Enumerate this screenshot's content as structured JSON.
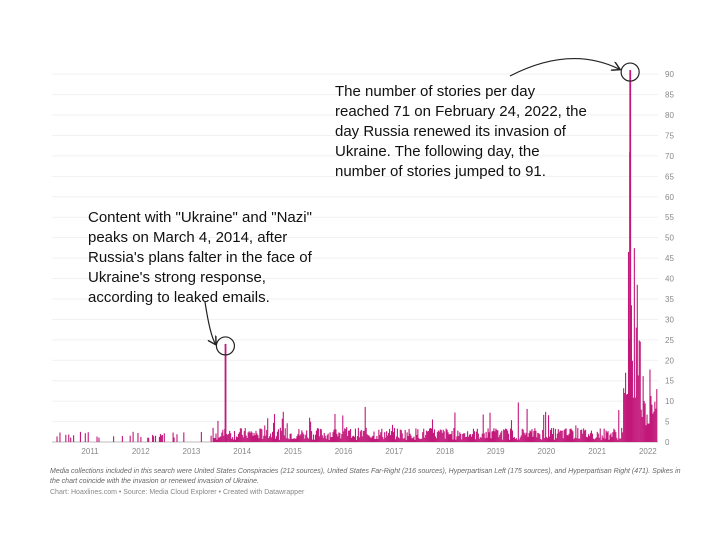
{
  "chart_data": {
    "type": "bar",
    "title": "",
    "xlabel": "",
    "ylabel": "",
    "color": "#c2187a",
    "xlim": [
      2010.75,
      2022.7
    ],
    "ylim": [
      0,
      92
    ],
    "y_ticks": [
      0,
      5,
      10,
      15,
      20,
      25,
      30,
      35,
      40,
      45,
      50,
      55,
      60,
      65,
      70,
      75,
      80,
      85,
      90
    ],
    "x_ticks": [
      {
        "year": 2011,
        "label": "2011"
      },
      {
        "year": 2012,
        "label": "2012"
      },
      {
        "year": 2013,
        "label": "2013"
      },
      {
        "year": 2014,
        "label": "2014"
      },
      {
        "year": 2015,
        "label": "2015"
      },
      {
        "year": 2016,
        "label": "2016"
      },
      {
        "year": 2017,
        "label": "2017"
      },
      {
        "year": 2018,
        "label": "2018"
      },
      {
        "year": 2019,
        "label": "2019"
      },
      {
        "year": 2020,
        "label": "2020"
      },
      {
        "year": 2021,
        "label": "2021"
      },
      {
        "year": 2022,
        "label": "2022"
      }
    ],
    "daily_stories_baseline": [
      {
        "period": "2010-10 to 2013-12",
        "typical": 0.3
      },
      {
        "period": "2014-01 to 2021-12",
        "typical": 2.5
      },
      {
        "period": "2022-01 to 2022-09",
        "typical": 12
      }
    ],
    "highlights": [
      {
        "date": "2014-03-04",
        "value": 24
      },
      {
        "date": "2022-02-24",
        "value": 71
      },
      {
        "date": "2022-02-25",
        "value": 91
      }
    ]
  },
  "annotations": {
    "peak_2022": "The number of stories per day\nreached 71 on February 24, 2022, the\nday Russia renewed its invasion of\nUkraine. The following day, the\nnumber of stories jumped to 91.",
    "peak_2014": "Content with \"Ukraine\" and \"Nazi\"\npeaks on March 4, 2014, after\nRussia's plans falter in the face of\nUkraine's strong response,\naccording to leaked emails."
  },
  "footnote": "Media collections included in this search were United States Conspiracies (212 sources), United States Far-Right (216 sources), Hyperpartisan Left (175 sources), and Hyperpartisan Right (471). Spikes in the chart coincide with the invasion or renewed invasion of Ukraine.",
  "credit": "Chart: Hoaxlines.com • Source: Media Cloud Explorer • Created with Datawrapper"
}
